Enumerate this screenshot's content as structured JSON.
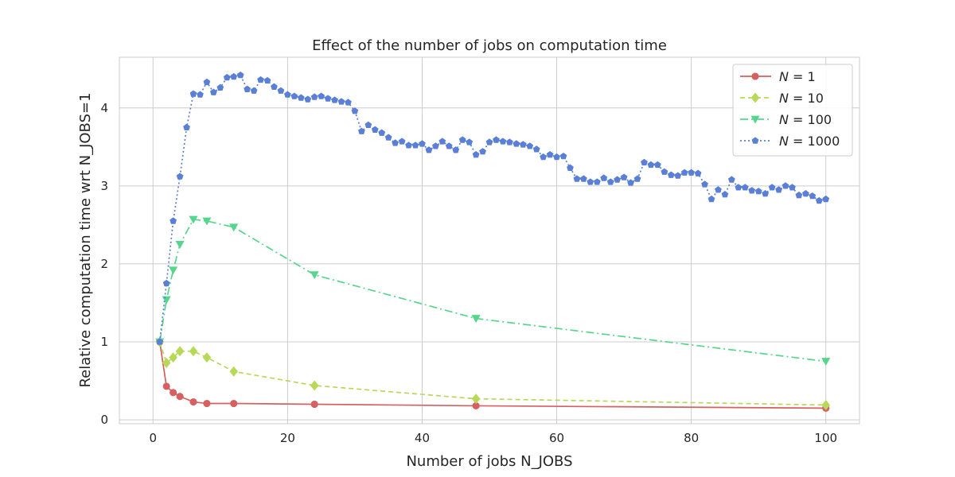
{
  "chart_data": {
    "type": "line",
    "title": "Effect of the number of jobs on computation time",
    "xlabel": "Number of jobs N_JOBS",
    "ylabel": "Relative computation time wrt N_JOBS=1",
    "xlim": [
      -5,
      105
    ],
    "ylim": [
      -0.05,
      4.65
    ],
    "xticks": [
      0,
      20,
      40,
      60,
      80,
      100
    ],
    "yticks": [
      0,
      1,
      2,
      3,
      4
    ],
    "grid": true,
    "legend_position": "top-right",
    "series": [
      {
        "name": "N = 1",
        "name_var": "N",
        "name_val": "1",
        "color": "#d65f5f",
        "marker": "circle",
        "dash": "",
        "x": [
          1,
          2,
          3,
          4,
          6,
          8,
          12,
          24,
          48,
          100
        ],
        "y": [
          1.0,
          0.43,
          0.35,
          0.3,
          0.23,
          0.21,
          0.21,
          0.2,
          0.18,
          0.15
        ]
      },
      {
        "name": "N = 10",
        "name_var": "N",
        "name_val": "10",
        "color": "#b8d958",
        "marker": "diamond",
        "dash": "6,4",
        "x": [
          1,
          2,
          3,
          4,
          6,
          8,
          12,
          24,
          48,
          100
        ],
        "y": [
          1.0,
          0.73,
          0.8,
          0.88,
          0.88,
          0.8,
          0.62,
          0.44,
          0.27,
          0.19
        ]
      },
      {
        "name": "N = 100",
        "name_var": "N",
        "name_val": "100",
        "color": "#56d68c",
        "marker": "triangle-down",
        "dash": "10,4,2,4",
        "x": [
          1,
          2,
          3,
          4,
          6,
          8,
          12,
          24,
          48,
          100
        ],
        "y": [
          1.0,
          1.54,
          1.92,
          2.25,
          2.57,
          2.55,
          2.47,
          1.86,
          1.3,
          0.75
        ]
      },
      {
        "name": "N = 1000",
        "name_var": "N",
        "name_val": "1000",
        "color": "#5a7fd6",
        "marker": "pentagon",
        "dash": "2,3",
        "x": [
          1,
          2,
          3,
          4,
          5,
          6,
          7,
          8,
          9,
          10,
          11,
          12,
          13,
          14,
          15,
          16,
          17,
          18,
          19,
          20,
          21,
          22,
          23,
          24,
          25,
          26,
          27,
          28,
          29,
          30,
          31,
          32,
          33,
          34,
          35,
          36,
          37,
          38,
          39,
          40,
          41,
          42,
          43,
          44,
          45,
          46,
          47,
          48,
          49,
          50,
          51,
          52,
          53,
          54,
          55,
          56,
          57,
          58,
          59,
          60,
          61,
          62,
          63,
          64,
          65,
          66,
          67,
          68,
          69,
          70,
          71,
          72,
          73,
          74,
          75,
          76,
          77,
          78,
          79,
          80,
          81,
          82,
          83,
          84,
          85,
          86,
          87,
          88,
          89,
          90,
          91,
          92,
          93,
          94,
          95,
          96,
          97,
          98,
          99,
          100
        ],
        "y": [
          1.0,
          1.75,
          2.55,
          3.12,
          3.75,
          4.18,
          4.17,
          4.33,
          4.2,
          4.26,
          4.39,
          4.4,
          4.42,
          4.24,
          4.22,
          4.36,
          4.35,
          4.27,
          4.22,
          4.17,
          4.15,
          4.13,
          4.11,
          4.14,
          4.15,
          4.12,
          4.1,
          4.08,
          4.07,
          3.96,
          3.7,
          3.78,
          3.72,
          3.68,
          3.62,
          3.55,
          3.57,
          3.52,
          3.52,
          3.54,
          3.46,
          3.51,
          3.57,
          3.51,
          3.46,
          3.59,
          3.56,
          3.4,
          3.44,
          3.56,
          3.59,
          3.57,
          3.56,
          3.54,
          3.53,
          3.51,
          3.47,
          3.37,
          3.4,
          3.37,
          3.38,
          3.23,
          3.09,
          3.09,
          3.05,
          3.05,
          3.1,
          3.05,
          3.08,
          3.11,
          3.04,
          3.09,
          3.3,
          3.27,
          3.27,
          3.18,
          3.14,
          3.13,
          3.17,
          3.17,
          3.16,
          3.02,
          2.83,
          2.95,
          2.89,
          3.08,
          2.98,
          2.98,
          2.94,
          2.93,
          2.9,
          2.98,
          2.95,
          3.0,
          2.98,
          2.88,
          2.9,
          2.87,
          2.81,
          2.83
        ]
      }
    ]
  }
}
